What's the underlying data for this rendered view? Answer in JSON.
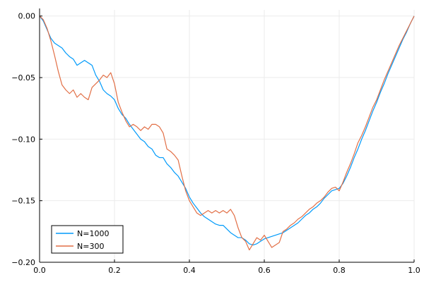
{
  "chart_data": {
    "type": "line",
    "xlim": [
      0,
      1
    ],
    "ylim": [
      -0.2,
      0.005
    ],
    "x_ticks": [
      0.0,
      0.2,
      0.4,
      0.6,
      0.8,
      1.0
    ],
    "x_tick_labels": [
      "0.0",
      "0.2",
      "0.4",
      "0.6",
      "0.8",
      "1.0"
    ],
    "y_ticks": [
      0.0,
      -0.05,
      -0.1,
      -0.15,
      -0.2
    ],
    "y_tick_labels": [
      "0.00",
      "−0.05",
      "−0.10",
      "−0.15",
      "−0.20"
    ],
    "grid": true,
    "legend_position": "bottom-left",
    "series": [
      {
        "name": "N=1000",
        "color": "#009AFA",
        "x": [
          0,
          0.01,
          0.02,
          0.03,
          0.04,
          0.05,
          0.06,
          0.07,
          0.08,
          0.09,
          0.1,
          0.11,
          0.12,
          0.13,
          0.14,
          0.15,
          0.16,
          0.17,
          0.18,
          0.19,
          0.2,
          0.21,
          0.22,
          0.23,
          0.24,
          0.25,
          0.26,
          0.27,
          0.28,
          0.29,
          0.3,
          0.31,
          0.32,
          0.33,
          0.34,
          0.35,
          0.36,
          0.37,
          0.38,
          0.39,
          0.4,
          0.41,
          0.42,
          0.43,
          0.44,
          0.45,
          0.46,
          0.47,
          0.48,
          0.49,
          0.5,
          0.51,
          0.52,
          0.53,
          0.54,
          0.55,
          0.56,
          0.57,
          0.58,
          0.59,
          0.6,
          0.61,
          0.62,
          0.63,
          0.64,
          0.65,
          0.66,
          0.67,
          0.68,
          0.69,
          0.7,
          0.71,
          0.72,
          0.73,
          0.74,
          0.75,
          0.76,
          0.77,
          0.78,
          0.79,
          0.8,
          0.81,
          0.82,
          0.83,
          0.84,
          0.85,
          0.86,
          0.87,
          0.88,
          0.89,
          0.9,
          0.91,
          0.92,
          0.93,
          0.94,
          0.95,
          0.96,
          0.97,
          0.98,
          0.99,
          1.0
        ],
        "y": [
          0,
          -0.004,
          -0.011,
          -0.018,
          -0.022,
          -0.024,
          -0.026,
          -0.03,
          -0.033,
          -0.035,
          -0.04,
          -0.038,
          -0.036,
          -0.038,
          -0.04,
          -0.048,
          -0.053,
          -0.06,
          -0.063,
          -0.065,
          -0.068,
          -0.075,
          -0.08,
          -0.083,
          -0.088,
          -0.092,
          -0.096,
          -0.1,
          -0.102,
          -0.106,
          -0.108,
          -0.113,
          -0.115,
          -0.115,
          -0.12,
          -0.123,
          -0.127,
          -0.13,
          -0.135,
          -0.14,
          -0.147,
          -0.152,
          -0.156,
          -0.16,
          -0.163,
          -0.165,
          -0.167,
          -0.169,
          -0.17,
          -0.17,
          -0.173,
          -0.176,
          -0.178,
          -0.18,
          -0.18,
          -0.182,
          -0.185,
          -0.186,
          -0.185,
          -0.183,
          -0.181,
          -0.18,
          -0.179,
          -0.178,
          -0.177,
          -0.176,
          -0.174,
          -0.172,
          -0.17,
          -0.168,
          -0.165,
          -0.162,
          -0.16,
          -0.157,
          -0.155,
          -0.152,
          -0.148,
          -0.145,
          -0.142,
          -0.141,
          -0.14,
          -0.136,
          -0.13,
          -0.123,
          -0.115,
          -0.108,
          -0.1,
          -0.093,
          -0.085,
          -0.077,
          -0.07,
          -0.062,
          -0.055,
          -0.047,
          -0.04,
          -0.033,
          -0.026,
          -0.019,
          -0.013,
          -0.006,
          0
        ]
      },
      {
        "name": "N=300",
        "color": "#E26F46",
        "x": [
          0,
          0.01,
          0.02,
          0.03,
          0.04,
          0.05,
          0.06,
          0.07,
          0.08,
          0.09,
          0.1,
          0.11,
          0.12,
          0.13,
          0.14,
          0.15,
          0.16,
          0.17,
          0.18,
          0.19,
          0.2,
          0.21,
          0.22,
          0.23,
          0.24,
          0.25,
          0.26,
          0.27,
          0.28,
          0.29,
          0.3,
          0.31,
          0.32,
          0.33,
          0.34,
          0.35,
          0.36,
          0.37,
          0.38,
          0.39,
          0.4,
          0.41,
          0.42,
          0.43,
          0.44,
          0.45,
          0.46,
          0.47,
          0.48,
          0.49,
          0.5,
          0.51,
          0.52,
          0.53,
          0.54,
          0.55,
          0.56,
          0.57,
          0.58,
          0.59,
          0.6,
          0.61,
          0.62,
          0.63,
          0.64,
          0.65,
          0.66,
          0.67,
          0.68,
          0.69,
          0.7,
          0.71,
          0.72,
          0.73,
          0.74,
          0.75,
          0.76,
          0.77,
          0.78,
          0.79,
          0.8,
          0.81,
          0.82,
          0.83,
          0.84,
          0.85,
          0.86,
          0.87,
          0.88,
          0.89,
          0.9,
          0.91,
          0.92,
          0.93,
          0.94,
          0.95,
          0.96,
          0.97,
          0.98,
          0.99,
          1.0
        ],
        "y": [
          0,
          -0.003,
          -0.01,
          -0.02,
          -0.032,
          -0.045,
          -0.056,
          -0.06,
          -0.063,
          -0.06,
          -0.066,
          -0.063,
          -0.066,
          -0.068,
          -0.058,
          -0.055,
          -0.052,
          -0.048,
          -0.05,
          -0.046,
          -0.055,
          -0.07,
          -0.078,
          -0.085,
          -0.09,
          -0.088,
          -0.09,
          -0.093,
          -0.09,
          -0.092,
          -0.088,
          -0.088,
          -0.09,
          -0.095,
          -0.108,
          -0.11,
          -0.113,
          -0.117,
          -0.13,
          -0.142,
          -0.15,
          -0.155,
          -0.16,
          -0.162,
          -0.16,
          -0.158,
          -0.16,
          -0.158,
          -0.16,
          -0.158,
          -0.16,
          -0.157,
          -0.162,
          -0.172,
          -0.18,
          -0.183,
          -0.19,
          -0.185,
          -0.18,
          -0.182,
          -0.178,
          -0.183,
          -0.188,
          -0.186,
          -0.184,
          -0.175,
          -0.173,
          -0.17,
          -0.168,
          -0.165,
          -0.163,
          -0.16,
          -0.157,
          -0.155,
          -0.152,
          -0.15,
          -0.147,
          -0.143,
          -0.14,
          -0.139,
          -0.142,
          -0.135,
          -0.127,
          -0.12,
          -0.112,
          -0.103,
          -0.097,
          -0.09,
          -0.082,
          -0.074,
          -0.068,
          -0.06,
          -0.052,
          -0.045,
          -0.038,
          -0.031,
          -0.024,
          -0.018,
          -0.012,
          -0.006,
          0
        ]
      }
    ]
  }
}
